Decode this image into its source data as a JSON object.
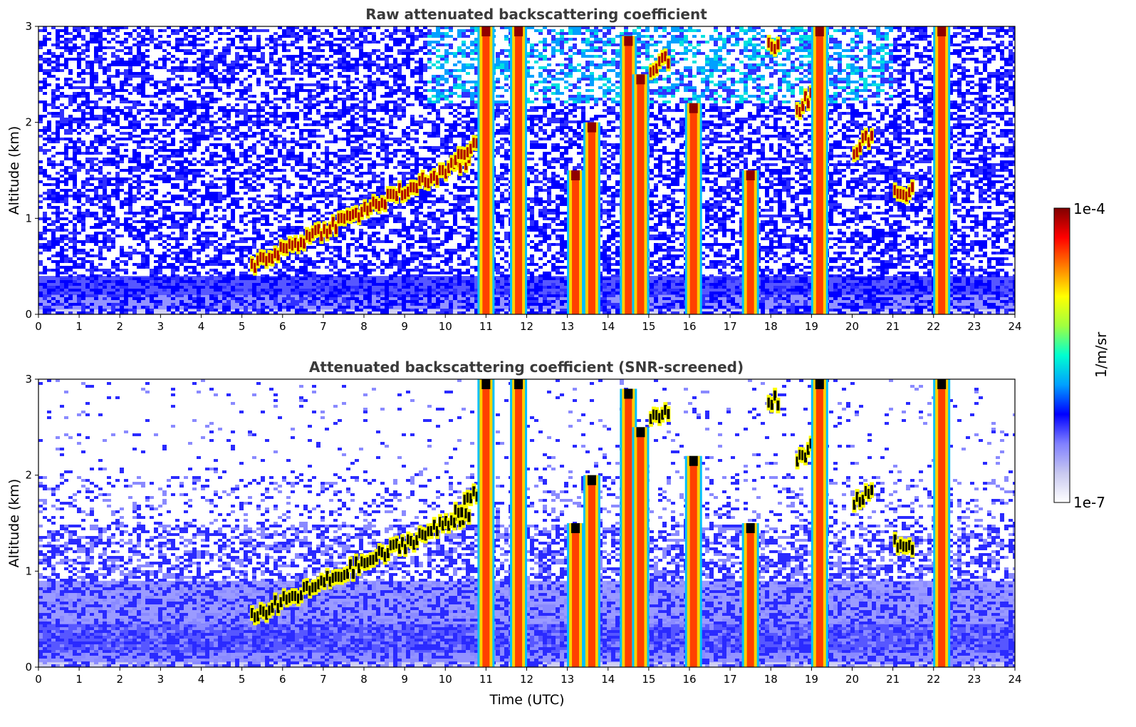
{
  "chart_data": [
    {
      "type": "heatmap",
      "title": "Raw attenuated backscattering coefficient",
      "xlabel": "",
      "ylabel": "Altitude (km)",
      "xlim": [
        0,
        24
      ],
      "ylim": [
        0,
        3
      ],
      "xticks": [
        0,
        1,
        2,
        3,
        4,
        5,
        6,
        7,
        8,
        9,
        10,
        11,
        12,
        13,
        14,
        15,
        16,
        17,
        18,
        19,
        20,
        21,
        22,
        23,
        24
      ],
      "yticks": [
        0,
        1,
        2,
        3
      ],
      "field": "raw",
      "cloud_columns": [
        {
          "x": 11.0,
          "top": 3.0
        },
        {
          "x": 11.8,
          "top": 3.0
        },
        {
          "x": 13.2,
          "top": 1.5
        },
        {
          "x": 13.6,
          "top": 2.0
        },
        {
          "x": 14.5,
          "top": 2.9
        },
        {
          "x": 14.8,
          "top": 2.5
        },
        {
          "x": 16.1,
          "top": 2.2
        },
        {
          "x": 17.5,
          "top": 1.5
        },
        {
          "x": 19.2,
          "top": 3.0
        },
        {
          "x": 22.2,
          "top": 3.0
        }
      ],
      "cloud_layers": [
        {
          "x0": 5.2,
          "x1": 10.6,
          "alt0": 0.5,
          "alt1": 1.6
        },
        {
          "x0": 10.2,
          "x1": 10.8,
          "alt0": 1.6,
          "alt1": 1.8
        },
        {
          "x0": 15.0,
          "x1": 15.5,
          "alt0": 2.55,
          "alt1": 2.65
        },
        {
          "x0": 17.9,
          "x1": 18.2,
          "alt0": 2.75,
          "alt1": 2.75
        },
        {
          "x0": 20.0,
          "x1": 20.5,
          "alt0": 1.7,
          "alt1": 1.85
        },
        {
          "x0": 21.0,
          "x1": 21.5,
          "alt0": 1.25,
          "alt1": 1.25
        },
        {
          "x0": 18.6,
          "x1": 19.0,
          "alt0": 2.1,
          "alt1": 2.3
        }
      ]
    },
    {
      "type": "heatmap",
      "title": "Attenuated backscattering coefficient (SNR-screened)",
      "xlabel": "Time (UTC)",
      "ylabel": "Altitude (km)",
      "xlim": [
        0,
        24
      ],
      "ylim": [
        0,
        3
      ],
      "xticks": [
        0,
        1,
        2,
        3,
        4,
        5,
        6,
        7,
        8,
        9,
        10,
        11,
        12,
        13,
        14,
        15,
        16,
        17,
        18,
        19,
        20,
        21,
        22,
        23,
        24
      ],
      "yticks": [
        0,
        1,
        2,
        3
      ],
      "field": "screened"
    }
  ],
  "colorbar": {
    "label": "1/m/sr",
    "max_label": "1e-4",
    "min_label": "1e-7",
    "scale": "log",
    "colormap": [
      "#ffffff",
      "#c8c8f0",
      "#8080ff",
      "#0000ff",
      "#00a0ff",
      "#00ffd0",
      "#a0ff40",
      "#ffff00",
      "#ff8000",
      "#ff0000",
      "#800000"
    ]
  }
}
